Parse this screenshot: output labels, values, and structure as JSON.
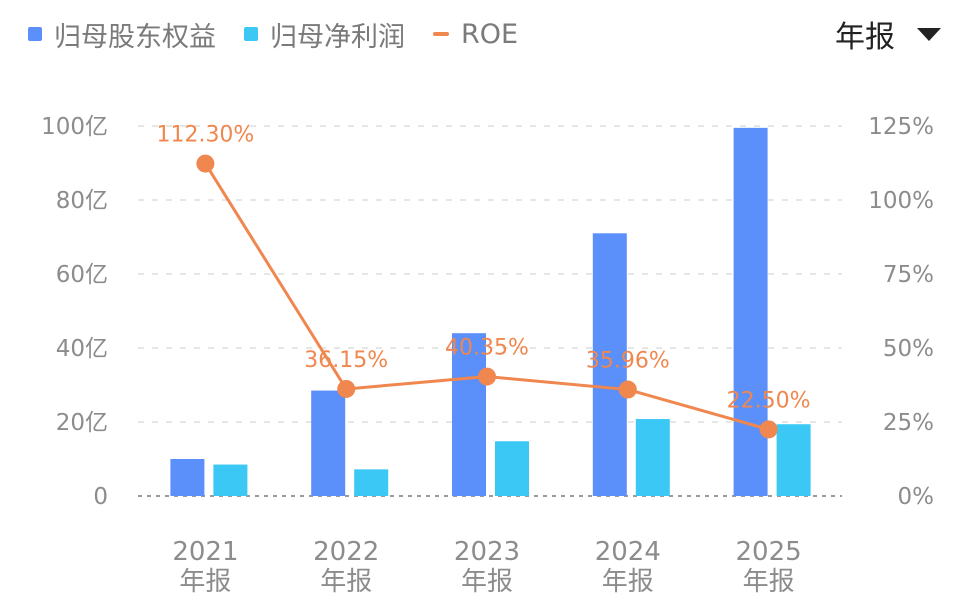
{
  "legend": {
    "equity": {
      "label": "归母股东权益",
      "color": "#5b8ff9"
    },
    "profit": {
      "label": "归母净利润",
      "color": "#3cc8f5"
    },
    "roe": {
      "label": "ROE",
      "color": "#f0874f"
    }
  },
  "period_selector": {
    "label": "年报"
  },
  "chart_data": {
    "type": "bar",
    "categories": [
      "2021\n年报",
      "2022\n年报",
      "2023\n年报",
      "2024\n年报",
      "2025\n年报"
    ],
    "series": [
      {
        "name": "归母股东权益",
        "type": "bar",
        "axis": "left",
        "values": [
          10.0,
          28.5,
          44.0,
          71.0,
          99.5
        ]
      },
      {
        "name": "归母净利润",
        "type": "bar",
        "axis": "left",
        "values": [
          8.5,
          7.2,
          14.8,
          20.8,
          19.4
        ]
      },
      {
        "name": "ROE",
        "type": "line",
        "axis": "right",
        "values": [
          112.3,
          36.15,
          40.35,
          35.96,
          22.5
        ],
        "data_labels": [
          "112.30%",
          "36.15%",
          "40.35%",
          "35.96%",
          "22.50%"
        ]
      }
    ],
    "y_left": {
      "ticks": [
        "0",
        "20亿",
        "40亿",
        "60亿",
        "80亿",
        "100亿"
      ],
      "values": [
        0,
        20,
        40,
        60,
        80,
        100
      ],
      "ylim": [
        0,
        100
      ]
    },
    "y_right": {
      "ticks": [
        "0%",
        "25%",
        "50%",
        "75%",
        "100%",
        "125%"
      ],
      "values": [
        0,
        25,
        50,
        75,
        100,
        125
      ],
      "ylim": [
        0,
        125
      ]
    },
    "grid": true
  }
}
